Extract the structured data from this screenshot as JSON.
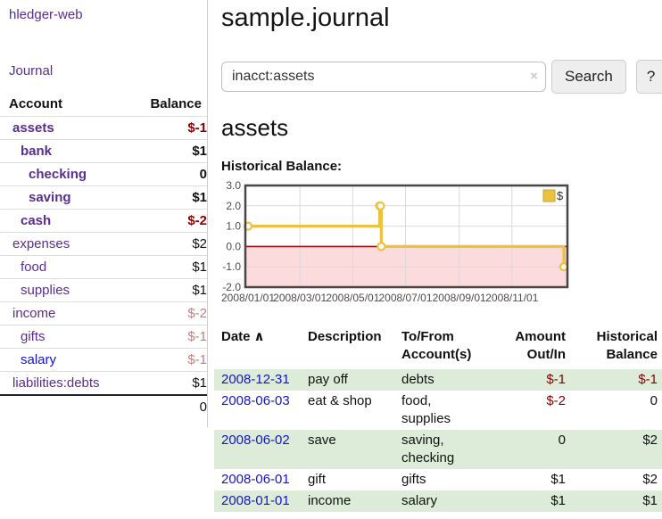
{
  "app": {
    "brand": "hledger-web",
    "nav_journal": "Journal"
  },
  "colors": {
    "purple_link": "#5b2d90",
    "blue_link": "#1414cc",
    "negative_strong": "#8b0000",
    "negative_muted": "#c08080",
    "row_green": "#dcecd8",
    "row_border": "#dddddd",
    "total_border": "#222222",
    "divider": "#cccccc",
    "button_bg": "#eeeeee",
    "button_border": "#cccccc",
    "clear_icon": "#cfc3e2",
    "chart_line": "#edc240",
    "chart_legend_border": "#c9a42e",
    "chart_marker_fill": "#ffffff",
    "chart_negative_fill": "#fbdbdb",
    "chart_zero_line": "#991111",
    "chart_grid": "#d9d9d9",
    "chart_border": "#474747",
    "axis_text": "#4d4d4d"
  },
  "sidebar": {
    "accounts_header": {
      "account": "Account",
      "balance": "Balance"
    },
    "accounts": [
      {
        "name": "assets",
        "balance": "$-1",
        "indent": 0,
        "bold": true,
        "balance_tone": "neg-strong",
        "link_tone": "purple"
      },
      {
        "name": "bank",
        "balance": "$1",
        "indent": 1,
        "bold": true,
        "balance_tone": "plain",
        "link_tone": "purple"
      },
      {
        "name": "checking",
        "balance": "0",
        "indent": 2,
        "bold": true,
        "balance_tone": "plain",
        "link_tone": "purple"
      },
      {
        "name": "saving",
        "balance": "$1",
        "indent": 2,
        "bold": true,
        "balance_tone": "plain",
        "link_tone": "purple"
      },
      {
        "name": "cash",
        "balance": "$-2",
        "indent": 1,
        "bold": true,
        "balance_tone": "neg-strong",
        "link_tone": "purple"
      },
      {
        "name": "expenses",
        "balance": "$2",
        "indent": 0,
        "bold": false,
        "balance_tone": "plain",
        "link_tone": "purple"
      },
      {
        "name": "food",
        "balance": "$1",
        "indent": 1,
        "bold": false,
        "balance_tone": "plain",
        "link_tone": "purple"
      },
      {
        "name": "supplies",
        "balance": "$1",
        "indent": 1,
        "bold": false,
        "balance_tone": "plain",
        "link_tone": "purple"
      },
      {
        "name": "income",
        "balance": "$-2",
        "indent": 0,
        "bold": false,
        "balance_tone": "neg-muted",
        "link_tone": "purple"
      },
      {
        "name": "gifts",
        "balance": "$-1",
        "indent": 1,
        "bold": false,
        "balance_tone": "neg-muted",
        "link_tone": "purple"
      },
      {
        "name": "salary",
        "balance": "$-1",
        "indent": 1,
        "bold": false,
        "balance_tone": "neg-muted",
        "link_tone": "blue"
      },
      {
        "name": "liabilities:debts",
        "balance": "$1",
        "indent": 0,
        "bold": false,
        "balance_tone": "plain",
        "link_tone": "purple"
      }
    ],
    "total": "0"
  },
  "header": {
    "title": "sample.journal"
  },
  "search": {
    "value": "inacct:assets",
    "clear_icon": "×",
    "button": "Search",
    "help_button": "?"
  },
  "main": {
    "account_title": "assets",
    "chart_label": "Historical Balance:"
  },
  "chart_data": {
    "type": "line",
    "title": "Historical Balance",
    "step": true,
    "series": [
      {
        "name": "$",
        "points": [
          {
            "date": "2008-01-01",
            "value": 1
          },
          {
            "date": "2008-06-01",
            "value": 2
          },
          {
            "date": "2008-06-02",
            "value": 2
          },
          {
            "date": "2008-06-03",
            "value": 0
          },
          {
            "date": "2008-12-31",
            "value": -1
          }
        ]
      }
    ],
    "ylim": [
      -2,
      3
    ],
    "xlim": [
      "2008-01-01",
      "2008-12-31"
    ],
    "y_ticks": [
      3.0,
      2.0,
      1.0,
      0.0,
      -1.0,
      -2.0
    ],
    "x_ticks": [
      "2008/01/01",
      "2008/03/01",
      "2008/05/01",
      "2008/07/01",
      "2008/09/01",
      "2008/11/01"
    ],
    "grid": true,
    "legend_position": "top-right",
    "legend": "$",
    "negative_region_shaded": true
  },
  "register": {
    "columns": {
      "date": "Date",
      "description": "Description",
      "accounts": "To/From Account(s)",
      "amount": "Amount Out/In",
      "balance": "Historical Balance"
    },
    "sort_icon": "∧",
    "rows": [
      {
        "date": "2008-12-31",
        "description": "pay off",
        "accounts": "debts",
        "amount": "$-1",
        "balance": "$-1"
      },
      {
        "date": "2008-06-03",
        "description": "eat & shop",
        "accounts": "food, supplies",
        "amount": "$-2",
        "balance": "0"
      },
      {
        "date": "2008-06-02",
        "description": "save",
        "accounts": "saving, checking",
        "amount": "0",
        "balance": "$2"
      },
      {
        "date": "2008-06-01",
        "description": "gift",
        "accounts": "gifts",
        "amount": "$1",
        "balance": "$2"
      },
      {
        "date": "2008-01-01",
        "description": "income",
        "accounts": "salary",
        "amount": "$1",
        "balance": "$1"
      }
    ]
  }
}
